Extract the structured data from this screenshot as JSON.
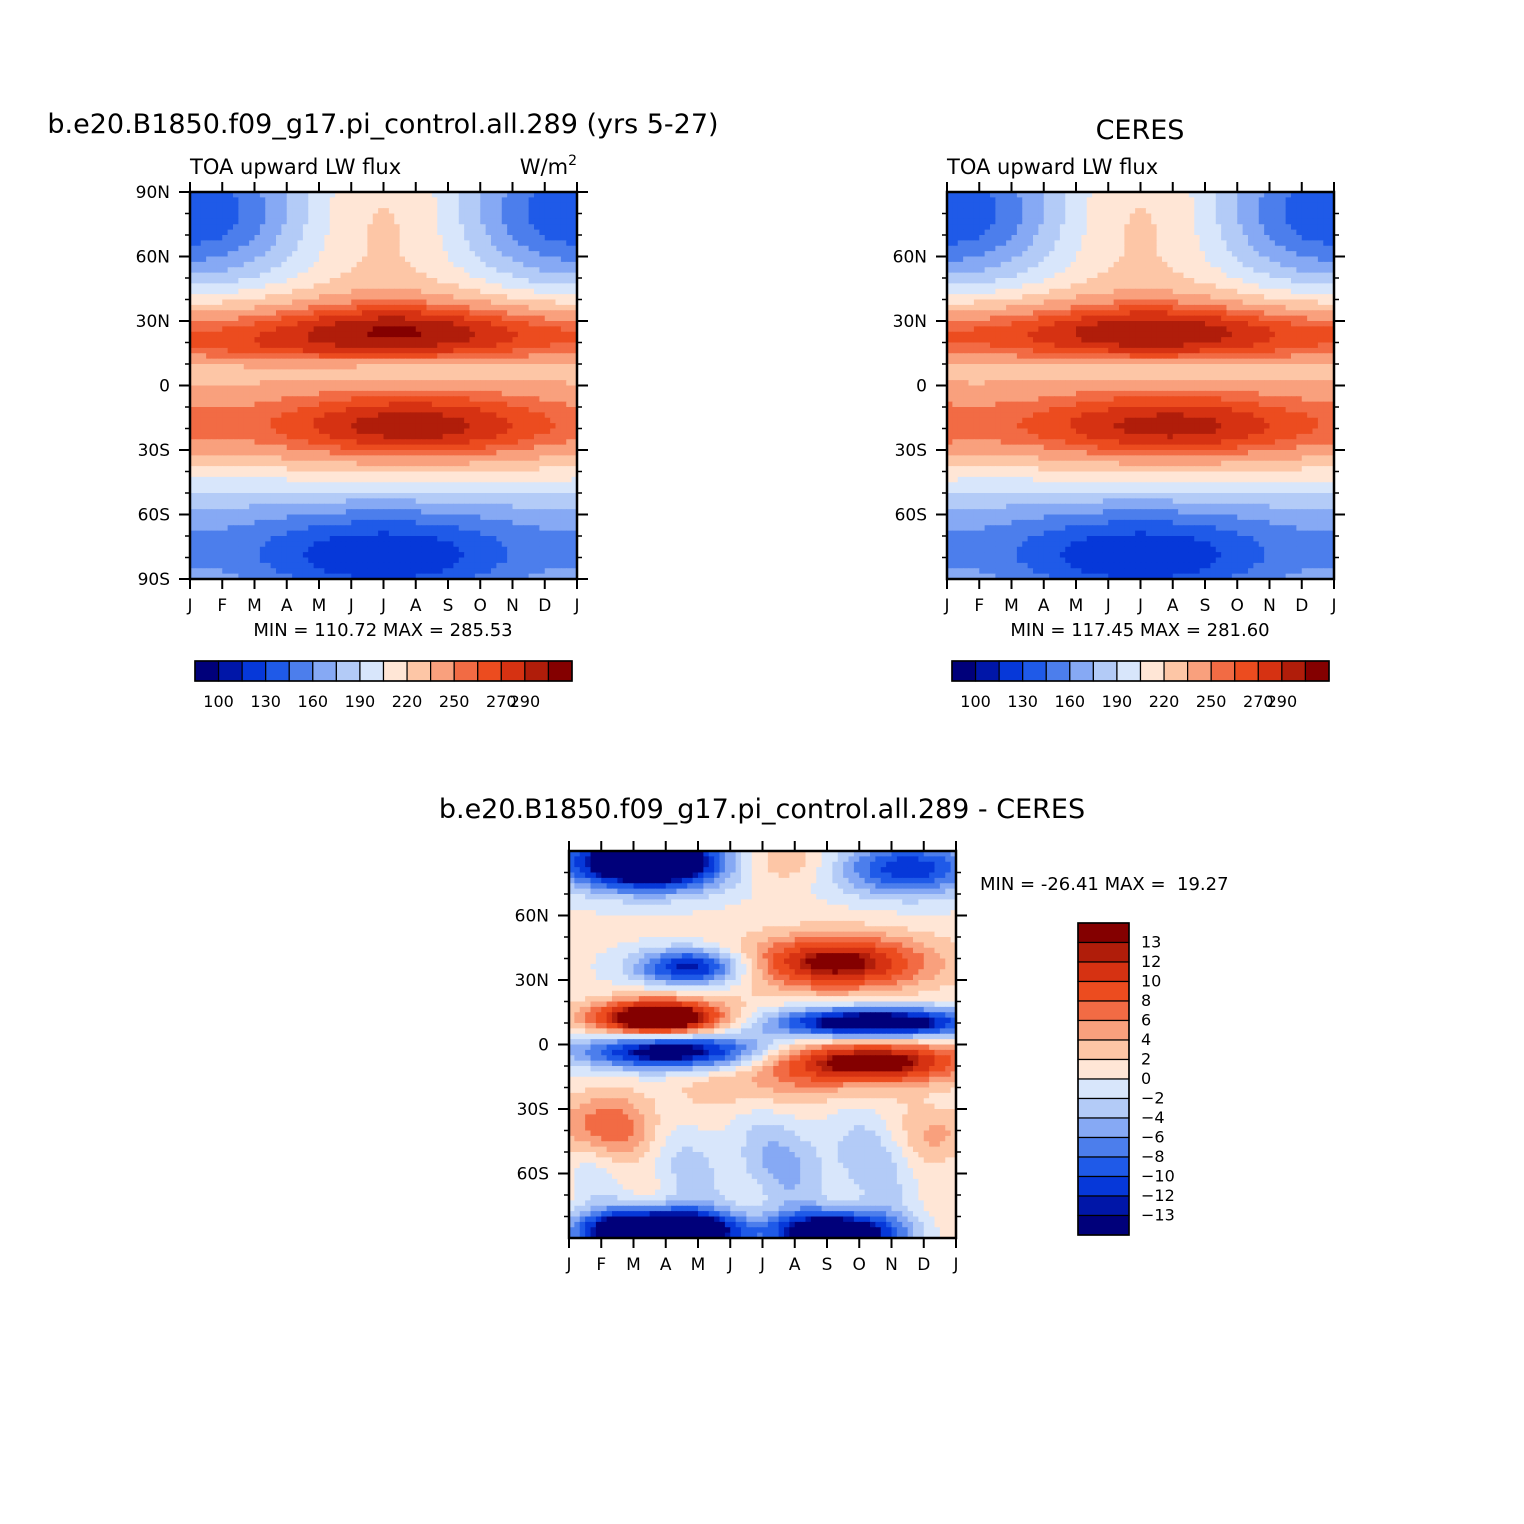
{
  "chart_data": [
    {
      "type": "heatmap",
      "id": "model",
      "title": "b.e20.B1850.f09_g17.pi_control.all.289 (yrs 5-27)",
      "left_string": "TOA upward LW flux",
      "right_string": "W/m",
      "right_string_sup": "2",
      "x_axis": {
        "labels": [
          "J",
          "F",
          "M",
          "A",
          "M",
          "J",
          "J",
          "A",
          "S",
          "O",
          "N",
          "D",
          "J"
        ]
      },
      "y_axis": {
        "range": [
          -90,
          90
        ],
        "ticks": [
          {
            "value": 90,
            "label": "90N"
          },
          {
            "value": 60,
            "label": "60N"
          },
          {
            "value": 30,
            "label": "30N"
          },
          {
            "value": 0,
            "label": "0"
          },
          {
            "value": -30,
            "label": "30S"
          },
          {
            "value": -60,
            "label": "60S"
          },
          {
            "value": -90,
            "label": "90S"
          }
        ]
      },
      "stats": {
        "text": "MIN = 110.72 MAX = 285.53",
        "min": 110.72,
        "max": 285.53
      },
      "colorbar": {
        "orientation": "horizontal",
        "levels": [
          100,
          115,
          130,
          145,
          160,
          175,
          190,
          205,
          220,
          235,
          250,
          260,
          270,
          280,
          290
        ],
        "labels": [
          "100",
          "130",
          "160",
          "190",
          "220",
          "250",
          "270",
          "290"
        ]
      }
    },
    {
      "type": "heatmap",
      "id": "obs",
      "title": "CERES",
      "left_string": "TOA upward LW flux",
      "x_axis": {
        "labels": [
          "J",
          "F",
          "M",
          "A",
          "M",
          "J",
          "J",
          "A",
          "S",
          "O",
          "N",
          "D",
          "J"
        ]
      },
      "y_axis": {
        "range": [
          -90,
          90
        ],
        "ticks": [
          {
            "value": 60,
            "label": "60N"
          },
          {
            "value": 30,
            "label": "30N"
          },
          {
            "value": 0,
            "label": "0"
          },
          {
            "value": -30,
            "label": "30S"
          },
          {
            "value": -60,
            "label": "60S"
          }
        ]
      },
      "stats": {
        "text": "MIN = 117.45 MAX = 281.60",
        "min": 117.45,
        "max": 281.6
      },
      "colorbar": {
        "orientation": "horizontal",
        "levels": [
          100,
          115,
          130,
          145,
          160,
          175,
          190,
          205,
          220,
          235,
          250,
          260,
          270,
          280,
          290
        ],
        "labels": [
          "100",
          "130",
          "160",
          "190",
          "220",
          "250",
          "270",
          "290"
        ]
      }
    },
    {
      "type": "heatmap",
      "id": "diff",
      "title": "b.e20.B1850.f09_g17.pi_control.all.289 - CERES",
      "x_axis": {
        "labels": [
          "J",
          "F",
          "M",
          "A",
          "M",
          "J",
          "J",
          "A",
          "S",
          "O",
          "N",
          "D",
          "J"
        ]
      },
      "y_axis": {
        "range": [
          -90,
          90
        ],
        "ticks": [
          {
            "value": 60,
            "label": "60N"
          },
          {
            "value": 30,
            "label": "30N"
          },
          {
            "value": 0,
            "label": "0"
          },
          {
            "value": -30,
            "label": "30S"
          },
          {
            "value": -60,
            "label": "60S"
          }
        ]
      },
      "stats": {
        "text": "MIN = -26.41 MAX =  19.27",
        "min": -26.41,
        "max": 19.27
      },
      "colorbar": {
        "orientation": "vertical",
        "levels": [
          13,
          12,
          10,
          8,
          6,
          4,
          2,
          0,
          -2,
          -4,
          -6,
          -8,
          -10,
          -12,
          -13
        ],
        "labels": [
          "13",
          "12",
          "10",
          "8",
          "6",
          "4",
          "2",
          "0",
          "-2",
          "-4",
          "-6",
          "-8",
          "-10",
          "-12",
          "-13"
        ]
      }
    }
  ],
  "palette": [
    "#00007a",
    "#0016a8",
    "#0638d9",
    "#1f5ae8",
    "#4c7eec",
    "#86a9f4",
    "#b3cbf7",
    "#d8e6fb",
    "#ffe6d6",
    "#fdc6a6",
    "#f9a07d",
    "#f26b44",
    "#ec4c1f",
    "#d63212",
    "#b01d0a",
    "#840000"
  ]
}
